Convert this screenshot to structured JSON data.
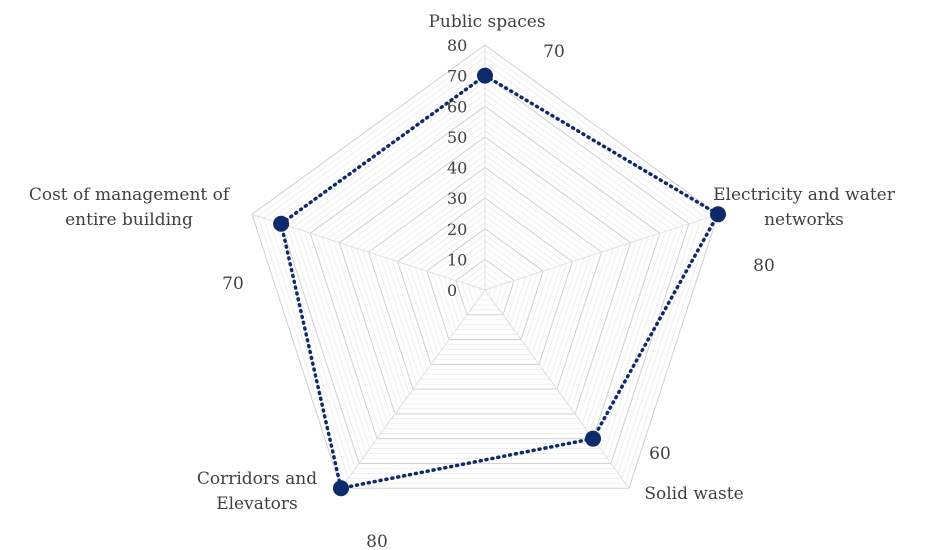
{
  "chart_data": {
    "type": "radar",
    "categories": [
      "Public spaces",
      "Electricity and water networks",
      "Solid waste",
      "Corridors and Elevators",
      "Cost of management of entire building"
    ],
    "series": [
      {
        "values": [
          70,
          80,
          60,
          80,
          70
        ]
      }
    ],
    "value_labels": [
      "70",
      "80",
      "60",
      "80",
      "70"
    ],
    "rlim": [
      0,
      80
    ],
    "ticks": [
      0,
      10,
      20,
      30,
      40,
      50,
      60,
      70,
      80
    ],
    "grid": true,
    "colors": {
      "series": "#0d2a6b",
      "grid": "#d9d9d9"
    }
  }
}
